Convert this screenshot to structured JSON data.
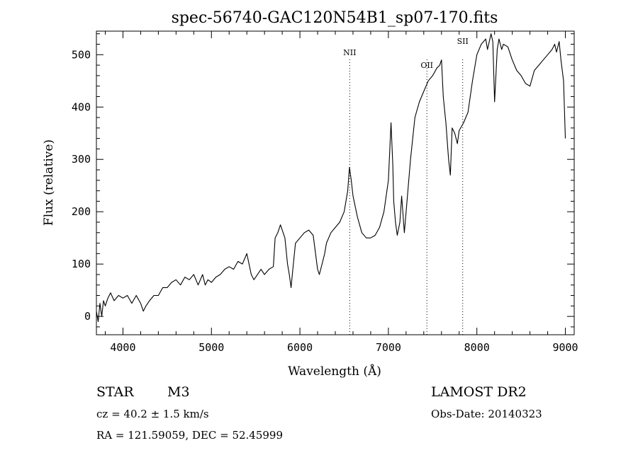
{
  "chart_data": {
    "type": "line",
    "title": "spec-56740-GAC120N54B1_sp07-170.fits",
    "xlabel": "Wavelength (Å)",
    "ylabel": "Flux (relative)",
    "xlim": [
      3700,
      9100
    ],
    "ylim": [
      -35,
      545
    ],
    "xticks": [
      4000,
      5000,
      6000,
      7000,
      8000,
      9000
    ],
    "yticks": [
      0,
      100,
      200,
      300,
      400,
      500
    ],
    "grid": false,
    "series": [
      {
        "color": "#000000",
        "x": [
          3700,
          3720,
          3740,
          3760,
          3780,
          3800,
          3830,
          3860,
          3900,
          3950,
          4000,
          4050,
          4100,
          4150,
          4200,
          4230,
          4260,
          4300,
          4350,
          4400,
          4450,
          4500,
          4550,
          4600,
          4650,
          4700,
          4750,
          4800,
          4850,
          4900,
          4930,
          4960,
          5000,
          5050,
          5100,
          5150,
          5200,
          5250,
          5300,
          5350,
          5400,
          5450,
          5480,
          5520,
          5560,
          5600,
          5650,
          5700,
          5720,
          5750,
          5780,
          5800,
          5830,
          5860,
          5880,
          5900,
          5920,
          5950,
          6000,
          6050,
          6100,
          6150,
          6200,
          6220,
          6250,
          6280,
          6300,
          6350,
          6400,
          6450,
          6500,
          6540,
          6560,
          6580,
          6600,
          6650,
          6700,
          6750,
          6800,
          6850,
          6900,
          6950,
          7000,
          7030,
          7050,
          7060,
          7080,
          7100,
          7130,
          7150,
          7180,
          7200,
          7250,
          7300,
          7350,
          7400,
          7450,
          7500,
          7550,
          7580,
          7600,
          7620,
          7650,
          7680,
          7700,
          7720,
          7750,
          7780,
          7800,
          7850,
          7900,
          7950,
          8000,
          8050,
          8100,
          8120,
          8140,
          8160,
          8180,
          8200,
          8230,
          8250,
          8280,
          8300,
          8350,
          8400,
          8450,
          8500,
          8550,
          8600,
          8650,
          8700,
          8750,
          8800,
          8850,
          8880,
          8900,
          8930,
          8950,
          8980,
          9000
        ],
        "y": [
          10,
          -10,
          25,
          0,
          30,
          20,
          35,
          45,
          30,
          40,
          35,
          40,
          25,
          40,
          25,
          10,
          20,
          30,
          40,
          40,
          55,
          55,
          65,
          70,
          60,
          75,
          70,
          80,
          60,
          80,
          60,
          70,
          65,
          75,
          80,
          90,
          95,
          90,
          105,
          100,
          120,
          80,
          70,
          80,
          90,
          80,
          90,
          95,
          150,
          160,
          175,
          165,
          150,
          100,
          80,
          55,
          90,
          140,
          150,
          160,
          165,
          155,
          90,
          80,
          100,
          120,
          140,
          160,
          170,
          180,
          200,
          240,
          285,
          260,
          230,
          190,
          160,
          150,
          150,
          155,
          170,
          200,
          260,
          370,
          290,
          220,
          180,
          155,
          180,
          230,
          160,
          200,
          300,
          380,
          410,
          430,
          450,
          460,
          475,
          480,
          490,
          420,
          370,
          300,
          270,
          360,
          350,
          330,
          355,
          370,
          390,
          450,
          500,
          520,
          530,
          510,
          525,
          540,
          525,
          410,
          510,
          530,
          510,
          520,
          515,
          490,
          470,
          460,
          445,
          440,
          470,
          480,
          490,
          500,
          510,
          520,
          505,
          525,
          490,
          450,
          340
        ]
      }
    ],
    "annotations": [
      {
        "label": "NII",
        "x": 6563
      },
      {
        "label": "OII",
        "x": 7435
      },
      {
        "label": "SII",
        "x": 7840
      }
    ]
  },
  "info": {
    "object_type": "STAR",
    "subclass": "M3",
    "survey": "LAMOST DR2",
    "cz": "cz = 40.2 ± 1.5 km/s",
    "obs_date": "Obs-Date: 20140323",
    "radec": "RA = 121.59059, DEC =  52.45999"
  }
}
